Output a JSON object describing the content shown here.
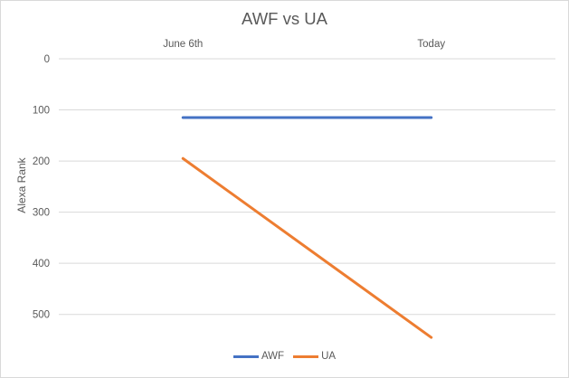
{
  "chart_data": {
    "type": "line",
    "title": "AWF vs UA",
    "xlabel": "",
    "ylabel": "Alexa Rank",
    "categories": [
      "June 6th",
      "Today"
    ],
    "x_axis_position": "top",
    "y_reversed": true,
    "ylim": [
      0,
      550
    ],
    "yticks": [
      0,
      100,
      200,
      300,
      400,
      500
    ],
    "grid": true,
    "legend_position": "bottom",
    "series": [
      {
        "name": "AWF",
        "color": "#4472c4",
        "values": [
          115,
          115
        ]
      },
      {
        "name": "UA",
        "color": "#ed7d31",
        "values": [
          195,
          545
        ]
      }
    ]
  }
}
